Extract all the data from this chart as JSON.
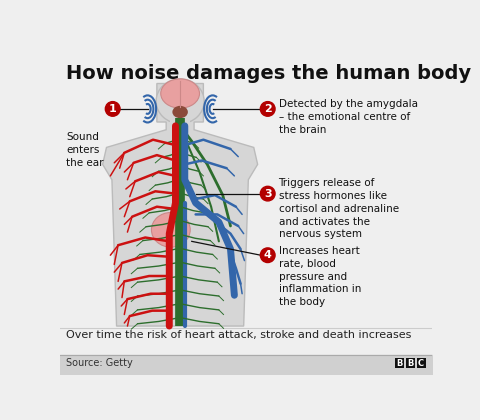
{
  "title": "How noise damages the human body",
  "bg_color": "#efefef",
  "footer_text": "Over time the risk of heart attack, stroke and death increases",
  "source_text": "Source: Getty",
  "label1_text": "Sound\nenters\nthe ear",
  "label2_text": "Detected by the amygdala\n– the emotional centre of\nthe brain",
  "label3_text": "Triggers release of\nstress hormones like\ncortisol and adrenaline\nand activates the\nnervous system",
  "label4_text": "Increases heart\nrate, blood\npressure and\ninflammation in\nthe body",
  "circle_color": "#b30000",
  "circle_text_color": "#ffffff",
  "body_fill": "#d6d6d6",
  "body_stroke": "#bbbbbb",
  "brain_pink": "#e8a0a0",
  "brain_dark": "#8b4a3a",
  "heart_pink": "#e8a0a0",
  "red_color": "#cc1111",
  "blue_color": "#3366aa",
  "green_color": "#2d6e2d",
  "dark_green": "#1a4a1a",
  "title_fontsize": 14,
  "label_fontsize": 7.5,
  "circle_fontsize": 8,
  "footer_fontsize": 8,
  "source_fontsize": 7
}
